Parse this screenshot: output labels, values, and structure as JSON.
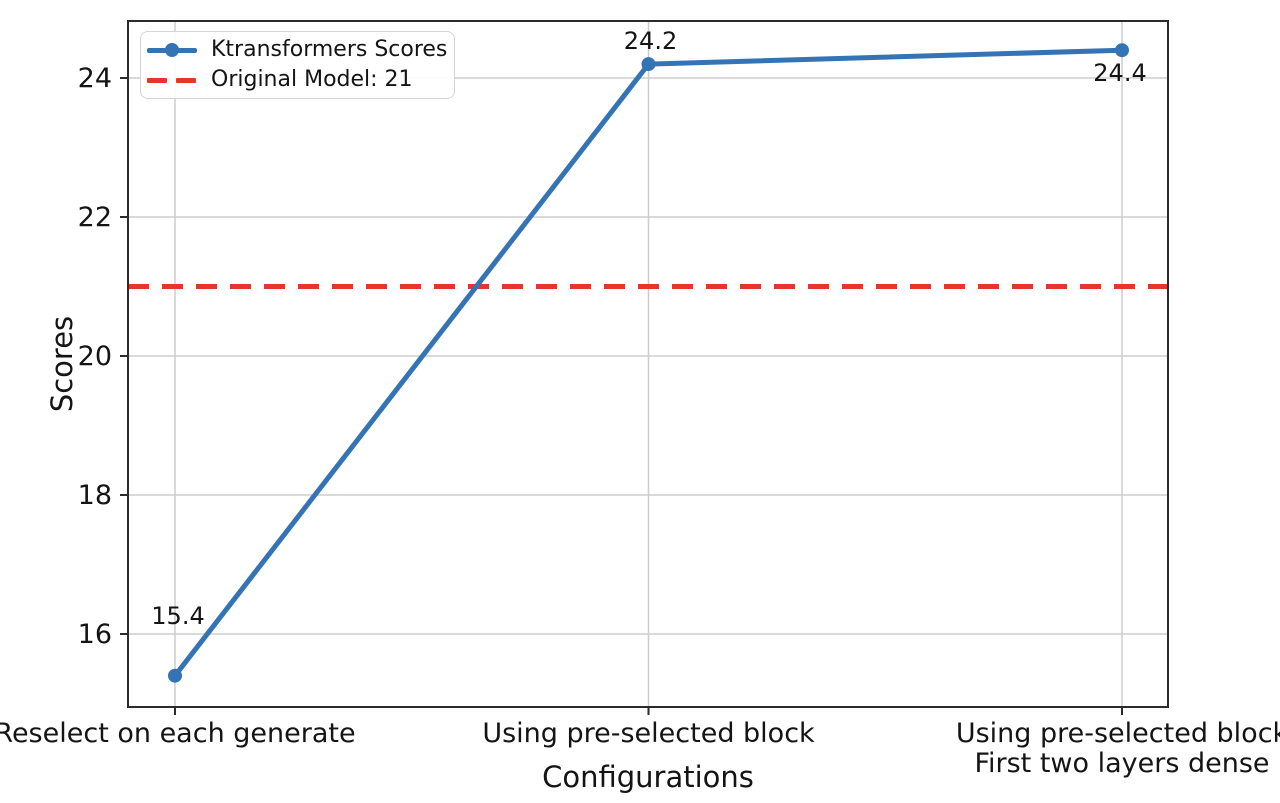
{
  "chart_data": {
    "type": "line",
    "title": "",
    "xlabel": "Configurations",
    "ylabel": "Scores",
    "categories": [
      [
        "Reselect on each generate"
      ],
      [
        "Using pre-selected block"
      ],
      [
        "Using pre-selected block",
        "First two layers dense"
      ]
    ],
    "series": [
      {
        "name": "Ktransformers Scores",
        "values": [
          15.4,
          24.2,
          24.4
        ],
        "point_labels": [
          "15.4",
          "24.2",
          "24.4"
        ],
        "color": "#3574b4",
        "marker": "circle",
        "line_style": "solid"
      }
    ],
    "reference_line": {
      "label": "Original Model: 21",
      "value": 21,
      "color": "#e6352c",
      "line_style": "dashed"
    },
    "yticks": [
      16,
      18,
      20,
      22,
      24
    ],
    "ylim": [
      14.95,
      24.85
    ],
    "grid": true,
    "grid_color": "#cdcdcd",
    "spine_color": "#2b2b2b",
    "legend_position": "upper left"
  }
}
